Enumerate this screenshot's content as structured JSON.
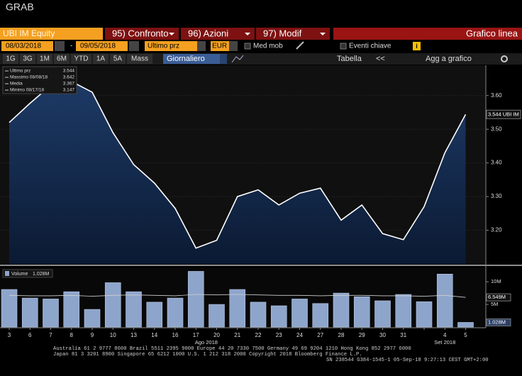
{
  "header": {
    "title": "GRAB"
  },
  "toolbar": {
    "security": "UBI IM Equity",
    "menus": [
      "95) Confronto",
      "96) Azioni",
      "97) Modif"
    ],
    "chart_type_label": "Grafico linea",
    "start_date": "08/03/2018",
    "date_separator": "-",
    "end_date": "09/05/2018",
    "field": "Ultimo prz",
    "currency": "EUR",
    "options": [
      "Med mob",
      "Eventi chiave"
    ],
    "periods": [
      "1G",
      "3G",
      "1M",
      "6M",
      "YTD",
      "1A",
      "5A",
      "Mass"
    ],
    "frequency": "Giornaliero",
    "table": "Tabella",
    "back": "<<",
    "add": "Agg a grafico"
  },
  "chart_data": [
    {
      "type": "area",
      "series": [
        {
          "name": "Ultimo prz",
          "color": "#ffffff",
          "values": [
            3.52,
            3.577,
            3.63,
            3.642,
            3.61,
            3.49,
            3.395,
            3.34,
            3.265,
            3.147,
            3.17,
            3.3,
            3.32,
            3.275,
            3.31,
            3.325,
            3.23,
            3.275,
            3.19,
            3.172,
            3.27,
            3.43,
            3.544
          ]
        }
      ],
      "ylim": [
        3.1,
        3.69
      ],
      "yticks": [
        {
          "value": 3.2,
          "label": "3.20"
        },
        {
          "value": 3.3,
          "label": "3.30"
        },
        {
          "value": 3.4,
          "label": "3.40"
        },
        {
          "value": 3.5,
          "label": "3.50"
        },
        {
          "value": 3.6,
          "label": "3.60"
        }
      ],
      "legend": [
        {
          "label": "Ultimo prz",
          "value": 3.544
        },
        {
          "label": "Massimo 08/08/18",
          "value": 3.642
        },
        {
          "label": "Media",
          "value": 3.367
        },
        {
          "label": "Minimo 08/17/18",
          "value": 3.147
        }
      ],
      "last_label": {
        "value": 3.544,
        "label": "3.544 UBI IM"
      }
    },
    {
      "type": "bar",
      "categories": [
        "3",
        "6",
        "7",
        "8",
        "9",
        "10",
        "13",
        "14",
        "16",
        "17",
        "20",
        "21",
        "22",
        "23",
        "24",
        "27",
        "28",
        "29",
        "30",
        "31",
        null,
        "4",
        "5"
      ],
      "x_groups": [
        {
          "label": "Ago 2018",
          "start": 0
        },
        {
          "label": "Set 2018",
          "start": 20
        }
      ],
      "series": [
        {
          "name": "Volume",
          "color": "#8ea5cb",
          "values": [
            8.3,
            6.4,
            6.2,
            7.8,
            3.9,
            9.8,
            7.8,
            5.5,
            6.4,
            12.3,
            5.0,
            8.3,
            5.5,
            4.7,
            6.2,
            5.2,
            7.5,
            6.7,
            5.8,
            7.2,
            5.6,
            11.7,
            1.028
          ]
        }
      ],
      "last_label": {
        "value": 1.028,
        "label": "1.028M"
      },
      "moving_average": {
        "color": "#cfcfcf",
        "values": [
          7.0,
          6.9,
          6.9,
          7.0,
          6.8,
          7.0,
          7.1,
          7.0,
          6.9,
          7.2,
          7.1,
          7.2,
          7.1,
          7.0,
          7.0,
          6.9,
          7.0,
          7.0,
          6.9,
          6.9,
          6.8,
          7.0,
          6.549
        ],
        "last_label": {
          "value": 6.549,
          "label": "6.549M"
        }
      },
      "ylim": [
        0,
        13
      ],
      "yticks": [
        {
          "value": 5,
          "label": "5M"
        },
        {
          "value": 10,
          "label": "10M"
        }
      ]
    }
  ],
  "footer": {
    "lines": [
      "Australia 61 2 9777 8600 Brazil 5511 2395 9000 Europe 44 20 7330 7500 Germany 49 69 9204 1210 Hong Kong 852 2977 6000",
      "Japan 81 3 3201 8900       Singapore 65 6212 1000       U.S. 1 212 318 2000            Copyright 2018 Bloomberg Finance L.P.",
      "SN 238544 G384-1545-1 05-Sep-18  9:27:13 CEST GMT+2:00"
    ]
  }
}
